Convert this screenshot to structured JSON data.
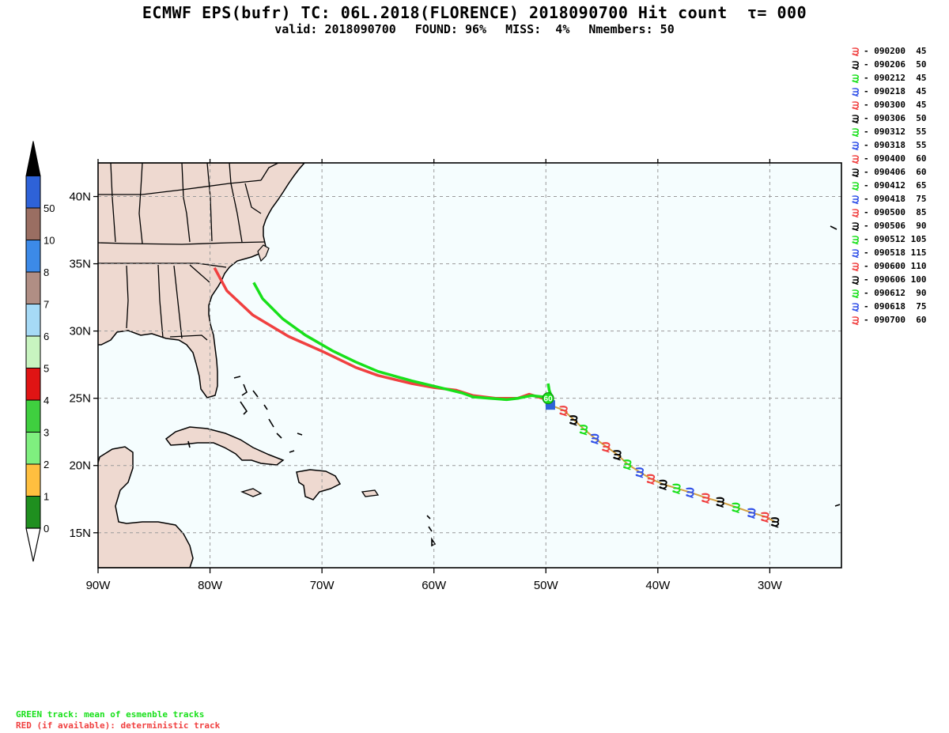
{
  "header": {
    "title": "ECMWF EPS(bufr) TC: 06L.2018(FLORENCE) 2018090700 Hit count  τ= 000",
    "valid": "valid: 2018090700",
    "found": "FOUND: 96%",
    "miss": "MISS:  4%",
    "nmembers": "Nmembers: 50"
  },
  "map": {
    "ocean_color": "#f5fdfe",
    "land_color": "#eed9d0",
    "lat_labels": [
      "40N",
      "35N",
      "30N",
      "25N",
      "20N",
      "15N"
    ],
    "lon_labels": [
      "90W",
      "80W",
      "70W",
      "60W",
      "50W",
      "40W",
      "30W"
    ],
    "lat_values": [
      40,
      35,
      30,
      25,
      20,
      15
    ],
    "lon_values": [
      -90,
      -80,
      -70,
      -60,
      -50,
      -40,
      -30
    ],
    "extent": {
      "lon_min": -90.0,
      "lon_max": -23.6,
      "lat_min": 12.4,
      "lat_max": 42.5
    },
    "storm_label": "60"
  },
  "colorbar": {
    "labels": [
      "0",
      "1",
      "2",
      "3",
      "4",
      "5",
      "6",
      "7",
      "8",
      "10",
      "50"
    ],
    "colors": [
      "#1f8f1f",
      "#ffbf3f",
      "#7fef7f",
      "#3fcf3f",
      "#e01414",
      "#c8f4c0",
      "#a6daf6",
      "#b08e84",
      "#3c8ae8",
      "#9a6e62",
      "#2e62d8"
    ]
  },
  "tracks": {
    "green_color": "#18e01a",
    "red_color": "#f04040",
    "forecast_color": "#d4a040",
    "green": [
      [
        -76.1,
        33.6
      ],
      [
        -75.3,
        32.4
      ],
      [
        -73.5,
        30.9
      ],
      [
        -71.5,
        29.7
      ],
      [
        -69.0,
        28.5
      ],
      [
        -67.0,
        27.7
      ],
      [
        -65.0,
        27.0
      ],
      [
        -62.0,
        26.3
      ],
      [
        -59.5,
        25.8
      ],
      [
        -57.5,
        25.4
      ],
      [
        -56.5,
        25.1
      ],
      [
        -55.0,
        25.0
      ],
      [
        -53.5,
        24.9
      ],
      [
        -52.5,
        25.0
      ],
      [
        -51.3,
        25.2
      ],
      [
        -50.2,
        25.1
      ],
      [
        -49.4,
        24.9
      ],
      [
        -49.7,
        25.6
      ],
      [
        -49.8,
        26.1
      ]
    ],
    "red": [
      [
        -79.6,
        34.7
      ],
      [
        -78.5,
        33.0
      ],
      [
        -76.2,
        31.2
      ],
      [
        -73.0,
        29.6
      ],
      [
        -70.0,
        28.5
      ],
      [
        -67.0,
        27.3
      ],
      [
        -65.0,
        26.7
      ],
      [
        -62.0,
        26.1
      ],
      [
        -60.0,
        25.8
      ],
      [
        -58.0,
        25.6
      ],
      [
        -56.5,
        25.2
      ],
      [
        -54.5,
        25.0
      ],
      [
        -52.5,
        25.0
      ],
      [
        -51.5,
        25.3
      ],
      [
        -50.3,
        25.0
      ]
    ],
    "forecast": [
      [
        -49.6,
        24.5
      ],
      [
        -48.4,
        24.1
      ],
      [
        -47.5,
        23.4
      ],
      [
        -46.6,
        22.7
      ],
      [
        -45.6,
        22.0
      ],
      [
        -44.6,
        21.4
      ],
      [
        -43.6,
        20.8
      ],
      [
        -42.7,
        20.1
      ],
      [
        -41.6,
        19.5
      ],
      [
        -40.6,
        19.0
      ],
      [
        -39.5,
        18.6
      ],
      [
        -38.3,
        18.3
      ],
      [
        -37.1,
        18.0
      ],
      [
        -35.7,
        17.6
      ],
      [
        -34.4,
        17.3
      ],
      [
        -33.0,
        16.9
      ],
      [
        -31.6,
        16.5
      ],
      [
        -30.4,
        16.2
      ],
      [
        -29.5,
        15.8
      ]
    ]
  },
  "legend": [
    {
      "text": "- 090200  45",
      "color": "#f04040",
      "glyph": "੩"
    },
    {
      "text": "- 090206  50",
      "color": "#000000",
      "glyph": "੩"
    },
    {
      "text": "- 090212  45",
      "color": "#18e01a",
      "glyph": "੩"
    },
    {
      "text": "- 090218  45",
      "color": "#3050e8",
      "glyph": "੩"
    },
    {
      "text": "- 090300  45",
      "color": "#f04040",
      "glyph": "੩"
    },
    {
      "text": "- 090306  50",
      "color": "#000000",
      "glyph": "੩"
    },
    {
      "text": "- 090312  55",
      "color": "#18e01a",
      "glyph": "੩"
    },
    {
      "text": "- 090318  55",
      "color": "#3050e8",
      "glyph": "੩"
    },
    {
      "text": "- 090400  60",
      "color": "#f04040",
      "glyph": "੩"
    },
    {
      "text": "- 090406  60",
      "color": "#000000",
      "glyph": "੩"
    },
    {
      "text": "- 090412  65",
      "color": "#18e01a",
      "glyph": "੩"
    },
    {
      "text": "- 090418  75",
      "color": "#3050e8",
      "glyph": "੩"
    },
    {
      "text": "- 090500  85",
      "color": "#f04040",
      "glyph": "੩"
    },
    {
      "text": "- 090506  90",
      "color": "#000000",
      "glyph": "੩"
    },
    {
      "text": "- 090512 105",
      "color": "#18e01a",
      "glyph": "੩"
    },
    {
      "text": "- 090518 115",
      "color": "#3050e8",
      "glyph": "੩"
    },
    {
      "text": "- 090600 110",
      "color": "#f04040",
      "glyph": "੩"
    },
    {
      "text": "- 090606 100",
      "color": "#000000",
      "glyph": "੩"
    },
    {
      "text": "- 090612  90",
      "color": "#18e01a",
      "glyph": "੩"
    },
    {
      "text": "- 090618  75",
      "color": "#3050e8",
      "glyph": "੩"
    },
    {
      "text": "- 090700  60",
      "color": "#f04040",
      "glyph": "੩"
    }
  ],
  "footer": {
    "green_note": "GREEN track: mean of esmenble tracks",
    "red_note": "RED (if available): deterministic track"
  }
}
